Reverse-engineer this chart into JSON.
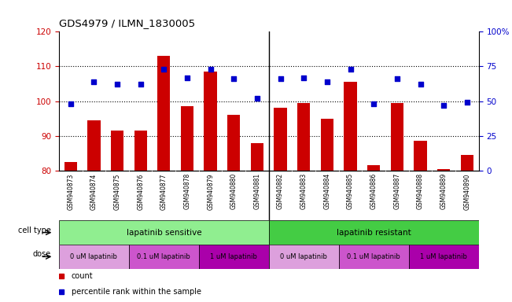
{
  "title": "GDS4979 / ILMN_1830005",
  "samples": [
    "GSM940873",
    "GSM940874",
    "GSM940875",
    "GSM940876",
    "GSM940877",
    "GSM940878",
    "GSM940879",
    "GSM940880",
    "GSM940881",
    "GSM940882",
    "GSM940883",
    "GSM940884",
    "GSM940885",
    "GSM940886",
    "GSM940887",
    "GSM940888",
    "GSM940889",
    "GSM940890"
  ],
  "bar_values": [
    82.5,
    94.5,
    91.5,
    91.5,
    113.0,
    98.5,
    108.5,
    96.0,
    88.0,
    98.0,
    99.5,
    95.0,
    105.5,
    81.5,
    99.5,
    88.5,
    80.5,
    84.5
  ],
  "dot_values": [
    48,
    64,
    62,
    62,
    73,
    67,
    73,
    66,
    52,
    66,
    67,
    64,
    73,
    48,
    66,
    62,
    47,
    49
  ],
  "ylim_left": [
    80,
    120
  ],
  "ylim_right": [
    0,
    100
  ],
  "yticks_left": [
    80,
    90,
    100,
    110,
    120
  ],
  "yticks_right": [
    0,
    25,
    50,
    75,
    100
  ],
  "bar_color": "#cc0000",
  "dot_color": "#0000cc",
  "cell_type_sensitive_label": "lapatinib sensitive",
  "cell_type_resistant_label": "lapatinib resistant",
  "cell_type_sensitive_color": "#90ee90",
  "cell_type_resistant_color": "#44cc44",
  "dose_labels_s": [
    "0 uM lapatinib",
    "0.1 uM lapatinib",
    "1 uM lapatinib"
  ],
  "dose_labels_r": [
    "0 uM lapatinib",
    "0.1 uM lapatinib",
    "1 uM lapatinib"
  ],
  "dose_colors": [
    "#dda0dd",
    "#cc55cc",
    "#aa00aa"
  ],
  "n_sensitive": 9,
  "n_resistant": 9,
  "legend_count_color": "#cc0000",
  "legend_dot_color": "#0000cc",
  "xtick_bg": "#d0d0d0",
  "separator_color": "#000000"
}
